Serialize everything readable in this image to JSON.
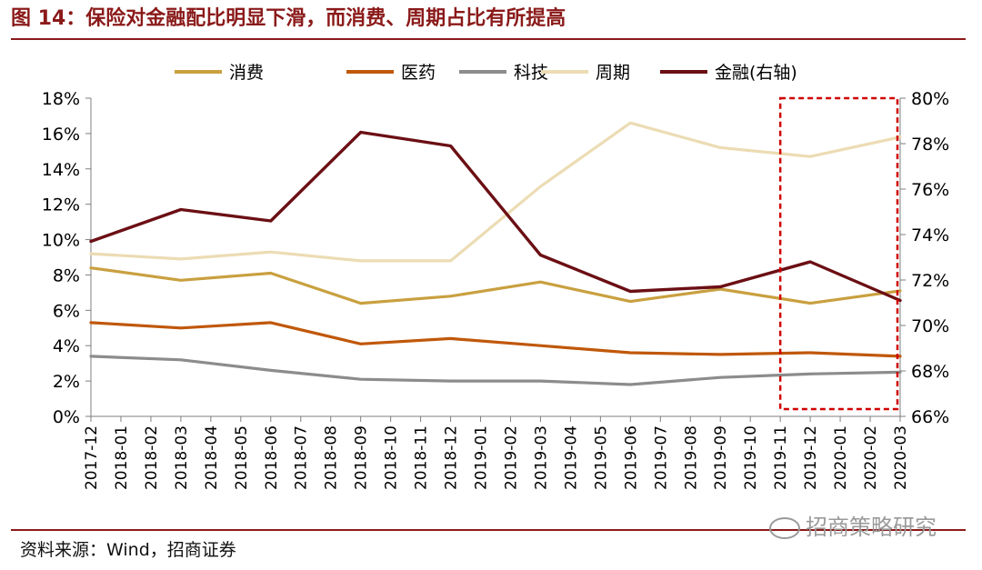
{
  "title": "图 14：保险对金融配比明显下滑，而消费、周期占比有所提高",
  "source": "资料来源：Wind，招商证券",
  "watermark": "招商策略研究",
  "colors": {
    "title": "#8b1a1a",
    "consumption": "#c9a040",
    "medicine": "#c0580a",
    "tech": "#8c8c8c",
    "cycle": "#ecdcb4",
    "finance": "#6b0f14",
    "highlight": "#d00000"
  },
  "chart_data": {
    "type": "line",
    "x": [
      "2017-12",
      "2018-01",
      "2018-02",
      "2018-03",
      "2018-04",
      "2018-05",
      "2018-06",
      "2018-07",
      "2018-08",
      "2018-09",
      "2018-10",
      "2018-11",
      "2018-12",
      "2019-01",
      "2019-02",
      "2019-03",
      "2019-04",
      "2019-05",
      "2019-06",
      "2019-07",
      "2019-08",
      "2019-09",
      "2019-10",
      "2019-11",
      "2019-12",
      "2020-01",
      "2020-02",
      "2020-03"
    ],
    "y_left": {
      "min": 0,
      "max": 18,
      "step": 2,
      "ticks": [
        "0%",
        "2%",
        "4%",
        "6%",
        "8%",
        "10%",
        "12%",
        "14%",
        "16%",
        "18%"
      ]
    },
    "y_right": {
      "min": 66,
      "max": 80,
      "step": 2,
      "ticks": [
        "66%",
        "68%",
        "70%",
        "72%",
        "74%",
        "76%",
        "78%",
        "80%"
      ]
    },
    "legend_position": "top",
    "grid": false,
    "series": [
      {
        "name": "消费",
        "axis": "left",
        "color_key": "consumption",
        "points": [
          [
            "2017-12",
            8.4
          ],
          [
            "2018-03",
            7.7
          ],
          [
            "2018-06",
            8.1
          ],
          [
            "2018-09",
            6.4
          ],
          [
            "2018-12",
            6.8
          ],
          [
            "2019-03",
            7.6
          ],
          [
            "2019-06",
            6.5
          ],
          [
            "2019-09",
            7.2
          ],
          [
            "2019-12",
            6.4
          ],
          [
            "2020-03",
            7.1
          ]
        ]
      },
      {
        "name": "医药",
        "axis": "left",
        "color_key": "medicine",
        "points": [
          [
            "2017-12",
            5.3
          ],
          [
            "2018-03",
            5.0
          ],
          [
            "2018-06",
            5.3
          ],
          [
            "2018-09",
            4.1
          ],
          [
            "2018-12",
            4.4
          ],
          [
            "2019-03",
            4.0
          ],
          [
            "2019-06",
            3.6
          ],
          [
            "2019-09",
            3.5
          ],
          [
            "2019-12",
            3.6
          ],
          [
            "2020-03",
            3.4
          ]
        ]
      },
      {
        "name": "科技",
        "axis": "left",
        "color_key": "tech",
        "points": [
          [
            "2017-12",
            3.4
          ],
          [
            "2018-03",
            3.2
          ],
          [
            "2018-06",
            2.6
          ],
          [
            "2018-09",
            2.1
          ],
          [
            "2018-12",
            2.0
          ],
          [
            "2019-03",
            2.0
          ],
          [
            "2019-06",
            1.8
          ],
          [
            "2019-09",
            2.2
          ],
          [
            "2019-12",
            2.4
          ],
          [
            "2020-03",
            2.5
          ]
        ]
      },
      {
        "name": "周期",
        "axis": "left",
        "color_key": "cycle",
        "points": [
          [
            "2017-12",
            9.2
          ],
          [
            "2018-03",
            8.9
          ],
          [
            "2018-06",
            9.3
          ],
          [
            "2018-09",
            8.8
          ],
          [
            "2018-12",
            8.8
          ],
          [
            "2019-03",
            13.0
          ],
          [
            "2019-06",
            16.6
          ],
          [
            "2019-09",
            15.2
          ],
          [
            "2019-12",
            14.7
          ],
          [
            "2020-03",
            15.8
          ]
        ]
      },
      {
        "name": "金融(右轴)",
        "axis": "right",
        "color_key": "finance",
        "points": [
          [
            "2017-12",
            73.7
          ],
          [
            "2018-03",
            75.1
          ],
          [
            "2018-06",
            74.6
          ],
          [
            "2018-09",
            78.5
          ],
          [
            "2018-12",
            77.9
          ],
          [
            "2019-03",
            73.1
          ],
          [
            "2019-06",
            71.5
          ],
          [
            "2019-09",
            71.7
          ],
          [
            "2019-12",
            72.8
          ],
          [
            "2020-03",
            71.1
          ]
        ]
      }
    ],
    "highlight_box": {
      "from": "2019-11",
      "to": "2020-03",
      "style": "dashed"
    }
  }
}
